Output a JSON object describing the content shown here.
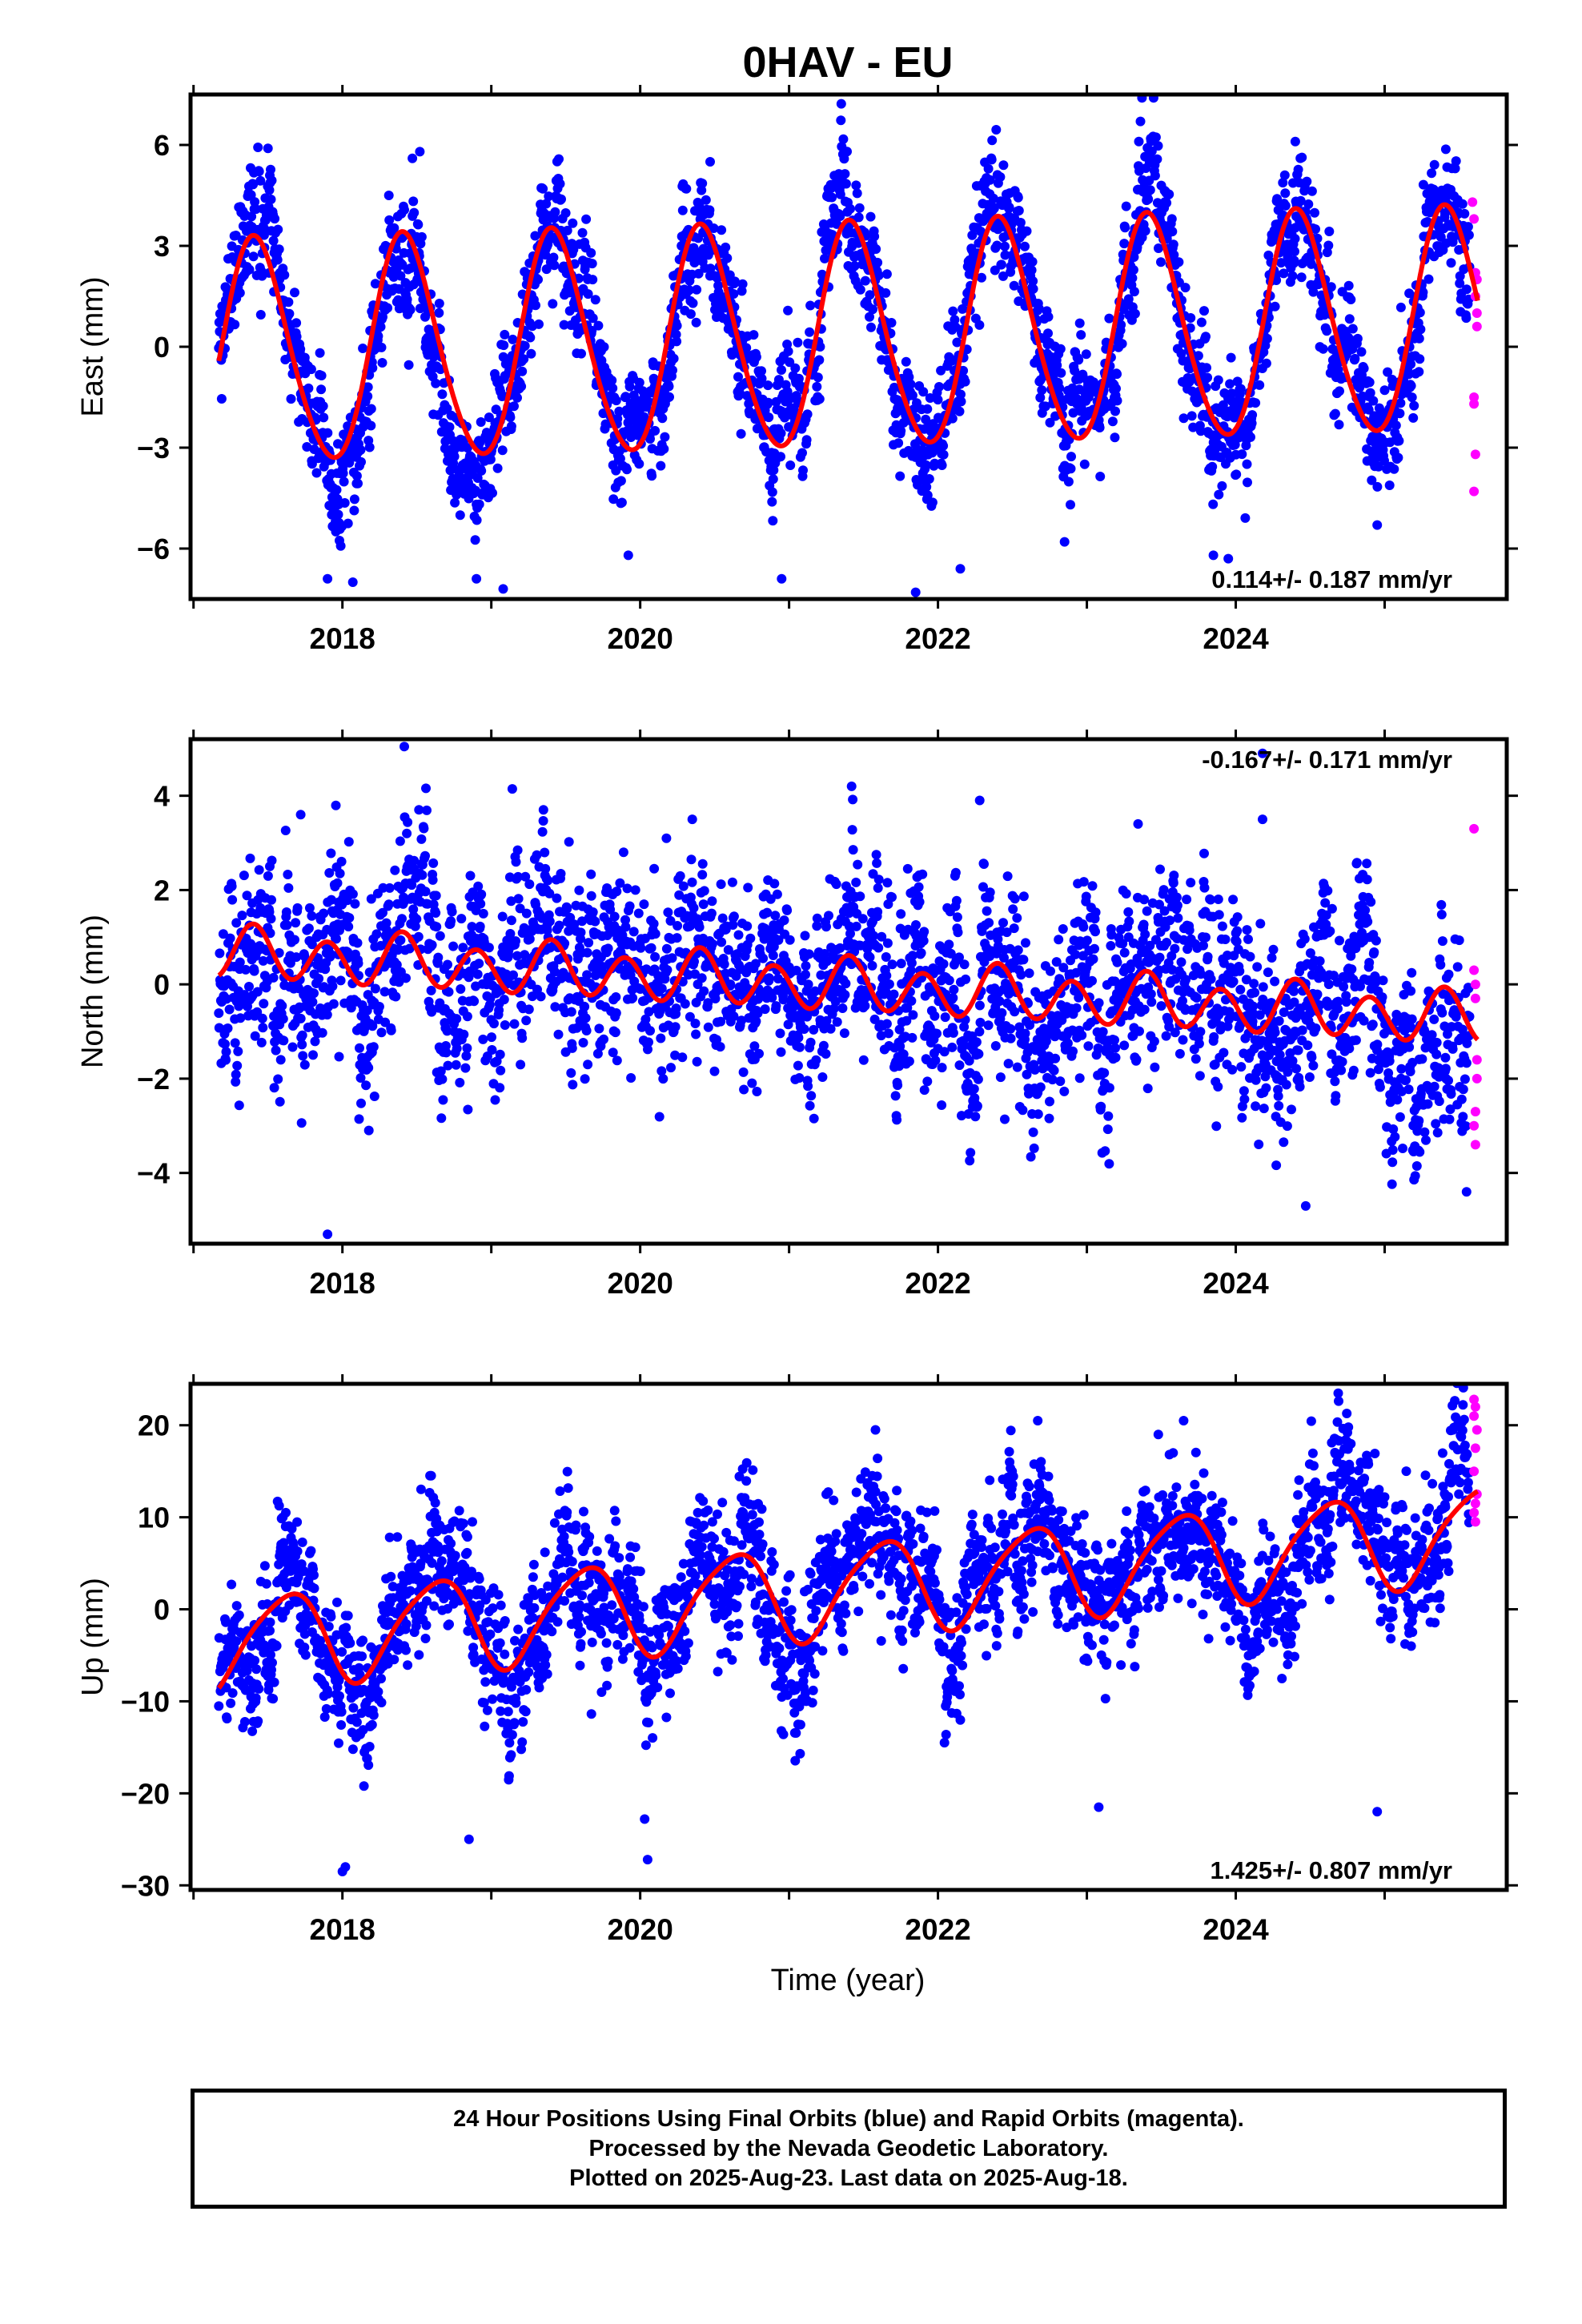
{
  "title": "0HAV - EU",
  "xlabel": "Time (year)",
  "colors": {
    "final": "#0000ff",
    "rapid": "#ff00ff",
    "model": "#ff0000",
    "frame": "#000000"
  },
  "footer": {
    "line1": "24 Hour Positions Using Final Orbits (blue) and Rapid Orbits (magenta).",
    "line2": "Processed by the Nevada Geodetic Laboratory.",
    "line3": "Plotted on 2025-Aug-23. Last data on 2025-Aug-18."
  },
  "chart_data": [
    {
      "type": "scatter",
      "name": "east",
      "ylabel": "East (mm)",
      "rate_label": "0.114+/- 0.187 mm/yr",
      "rate_position": "bottom-right",
      "xlim": [
        2016.98,
        2025.82
      ],
      "ylim": [
        -7.5,
        7.5
      ],
      "xticks": [
        2018,
        2020,
        2022,
        2024
      ],
      "yticks": [
        6,
        3,
        0,
        -3,
        -6
      ],
      "ytick_labels": [
        "6",
        "3",
        "0",
        "−3",
        "−6"
      ],
      "data_start": 2017.17,
      "final_end": 2025.57,
      "last_data": 2025.63,
      "model": {
        "offset": -0.25,
        "slope": 0.114,
        "annual_amp": 3.3,
        "annual_peak": 0.42,
        "semi_amp": 0.3,
        "semi_peak": 0.35
      },
      "noise_sd": 0.95,
      "rapid_points": [
        [
          2025.59,
          4.3
        ],
        [
          2025.6,
          3.8
        ],
        [
          2025.61,
          2.2
        ],
        [
          2025.61,
          1.5
        ],
        [
          2025.62,
          2.0
        ],
        [
          2025.62,
          1.0
        ],
        [
          2025.62,
          0.6
        ],
        [
          2025.6,
          -1.5
        ],
        [
          2025.6,
          -1.7
        ],
        [
          2025.61,
          -3.2
        ],
        [
          2025.6,
          -4.3
        ]
      ],
      "outliers": [
        [
          2017.5,
          5.9
        ],
        [
          2018.47,
          5.6
        ],
        [
          2018.52,
          5.8
        ],
        [
          2019.45,
          5.0
        ],
        [
          2020.47,
          5.5
        ],
        [
          2021.45,
          4.8
        ],
        [
          2022.44,
          5.4
        ],
        [
          2023.37,
          7.4
        ],
        [
          2023.36,
          6.7
        ],
        [
          2024.4,
          6.1
        ],
        [
          2017.9,
          -6.9
        ],
        [
          2018.07,
          -7.0
        ],
        [
          2018.9,
          -6.9
        ],
        [
          2019.08,
          -7.2
        ],
        [
          2019.92,
          -6.2
        ],
        [
          2020.95,
          -6.9
        ],
        [
          2021.85,
          -7.3
        ],
        [
          2022.15,
          -6.6
        ],
        [
          2022.85,
          -5.8
        ],
        [
          2023.85,
          -6.2
        ],
        [
          2023.95,
          -6.3
        ],
        [
          2024.95,
          -5.3
        ]
      ]
    },
    {
      "type": "scatter",
      "name": "north",
      "ylabel": "North (mm)",
      "rate_label": "-0.167+/- 0.171 mm/yr",
      "rate_position": "top-right",
      "xlim": [
        2016.98,
        2025.82
      ],
      "ylim": [
        -5.5,
        5.2
      ],
      "xticks": [
        2018,
        2020,
        2022,
        2024
      ],
      "yticks": [
        4,
        2,
        0,
        -2,
        -4
      ],
      "ytick_labels": [
        "4",
        "2",
        "0",
        "−2",
        "−4"
      ],
      "data_start": 2017.17,
      "final_end": 2025.57,
      "last_data": 2025.63,
      "model": {
        "offset": 0.7,
        "slope": -0.167,
        "annual_amp": 0.15,
        "annual_peak": 0.42,
        "semi_amp": 0.5,
        "semi_peak": 0.4
      },
      "noise_sd": 1.05,
      "rapid_points": [
        [
          2025.6,
          3.3
        ],
        [
          2025.6,
          0.3
        ],
        [
          2025.61,
          0.0
        ],
        [
          2025.61,
          -0.3
        ],
        [
          2025.62,
          -1.6
        ],
        [
          2025.62,
          -2.0
        ],
        [
          2025.61,
          -2.7
        ],
        [
          2025.6,
          -3.0
        ],
        [
          2025.61,
          -3.4
        ]
      ],
      "outliers": [
        [
          2017.9,
          -5.3
        ],
        [
          2021.42,
          4.2
        ],
        [
          2022.28,
          3.9
        ],
        [
          2024.18,
          3.5
        ],
        [
          2024.47,
          -4.7
        ],
        [
          2020.35,
          3.5
        ],
        [
          2019.35,
          3.7
        ],
        [
          2017.72,
          3.6
        ],
        [
          2024.18,
          4.9
        ],
        [
          2025.55,
          -4.4
        ]
      ]
    },
    {
      "type": "scatter",
      "name": "up",
      "ylabel": "Up (mm)",
      "rate_label": "1.425+/- 0.807 mm/yr",
      "rate_position": "bottom-right",
      "xlim": [
        2016.98,
        2025.82
      ],
      "ylim": [
        -30.5,
        24.5
      ],
      "xticks": [
        2018,
        2020,
        2022,
        2024
      ],
      "yticks": [
        20,
        10,
        0,
        -10,
        -20,
        -30
      ],
      "ytick_labels": [
        "20",
        "10",
        "0",
        "−10",
        "−20",
        "−30"
      ],
      "data_start": 2017.17,
      "final_end": 2025.57,
      "last_data": 2025.63,
      "model": {
        "offset": -4.0,
        "slope": 1.425,
        "annual_amp": 5.0,
        "annual_peak": 0.62,
        "semi_amp": 0.8,
        "semi_peak": 0.3
      },
      "noise_sd": 4.0,
      "rapid_points": [
        [
          2025.6,
          22.8
        ],
        [
          2025.61,
          22.0
        ],
        [
          2025.6,
          21.0
        ],
        [
          2025.62,
          19.5
        ],
        [
          2025.61,
          17.5
        ],
        [
          2025.6,
          15.0
        ],
        [
          2025.62,
          12.5
        ],
        [
          2025.61,
          11.5
        ],
        [
          2025.6,
          10.5
        ],
        [
          2025.61,
          9.5
        ]
      ],
      "outliers": [
        [
          2018.0,
          -28.5
        ],
        [
          2018.02,
          -28.0
        ],
        [
          2020.05,
          -27.2
        ],
        [
          2020.03,
          -22.8
        ],
        [
          2018.85,
          -25.0
        ],
        [
          2023.08,
          -21.5
        ],
        [
          2024.95,
          -22.0
        ],
        [
          2022.67,
          20.5
        ],
        [
          2023.65,
          20.5
        ],
        [
          2021.58,
          19.5
        ],
        [
          2024.75,
          19.2
        ],
        [
          2023.48,
          19.0
        ],
        [
          2017.6,
          10.0
        ],
        [
          2017.62,
          10.5
        ]
      ]
    }
  ]
}
